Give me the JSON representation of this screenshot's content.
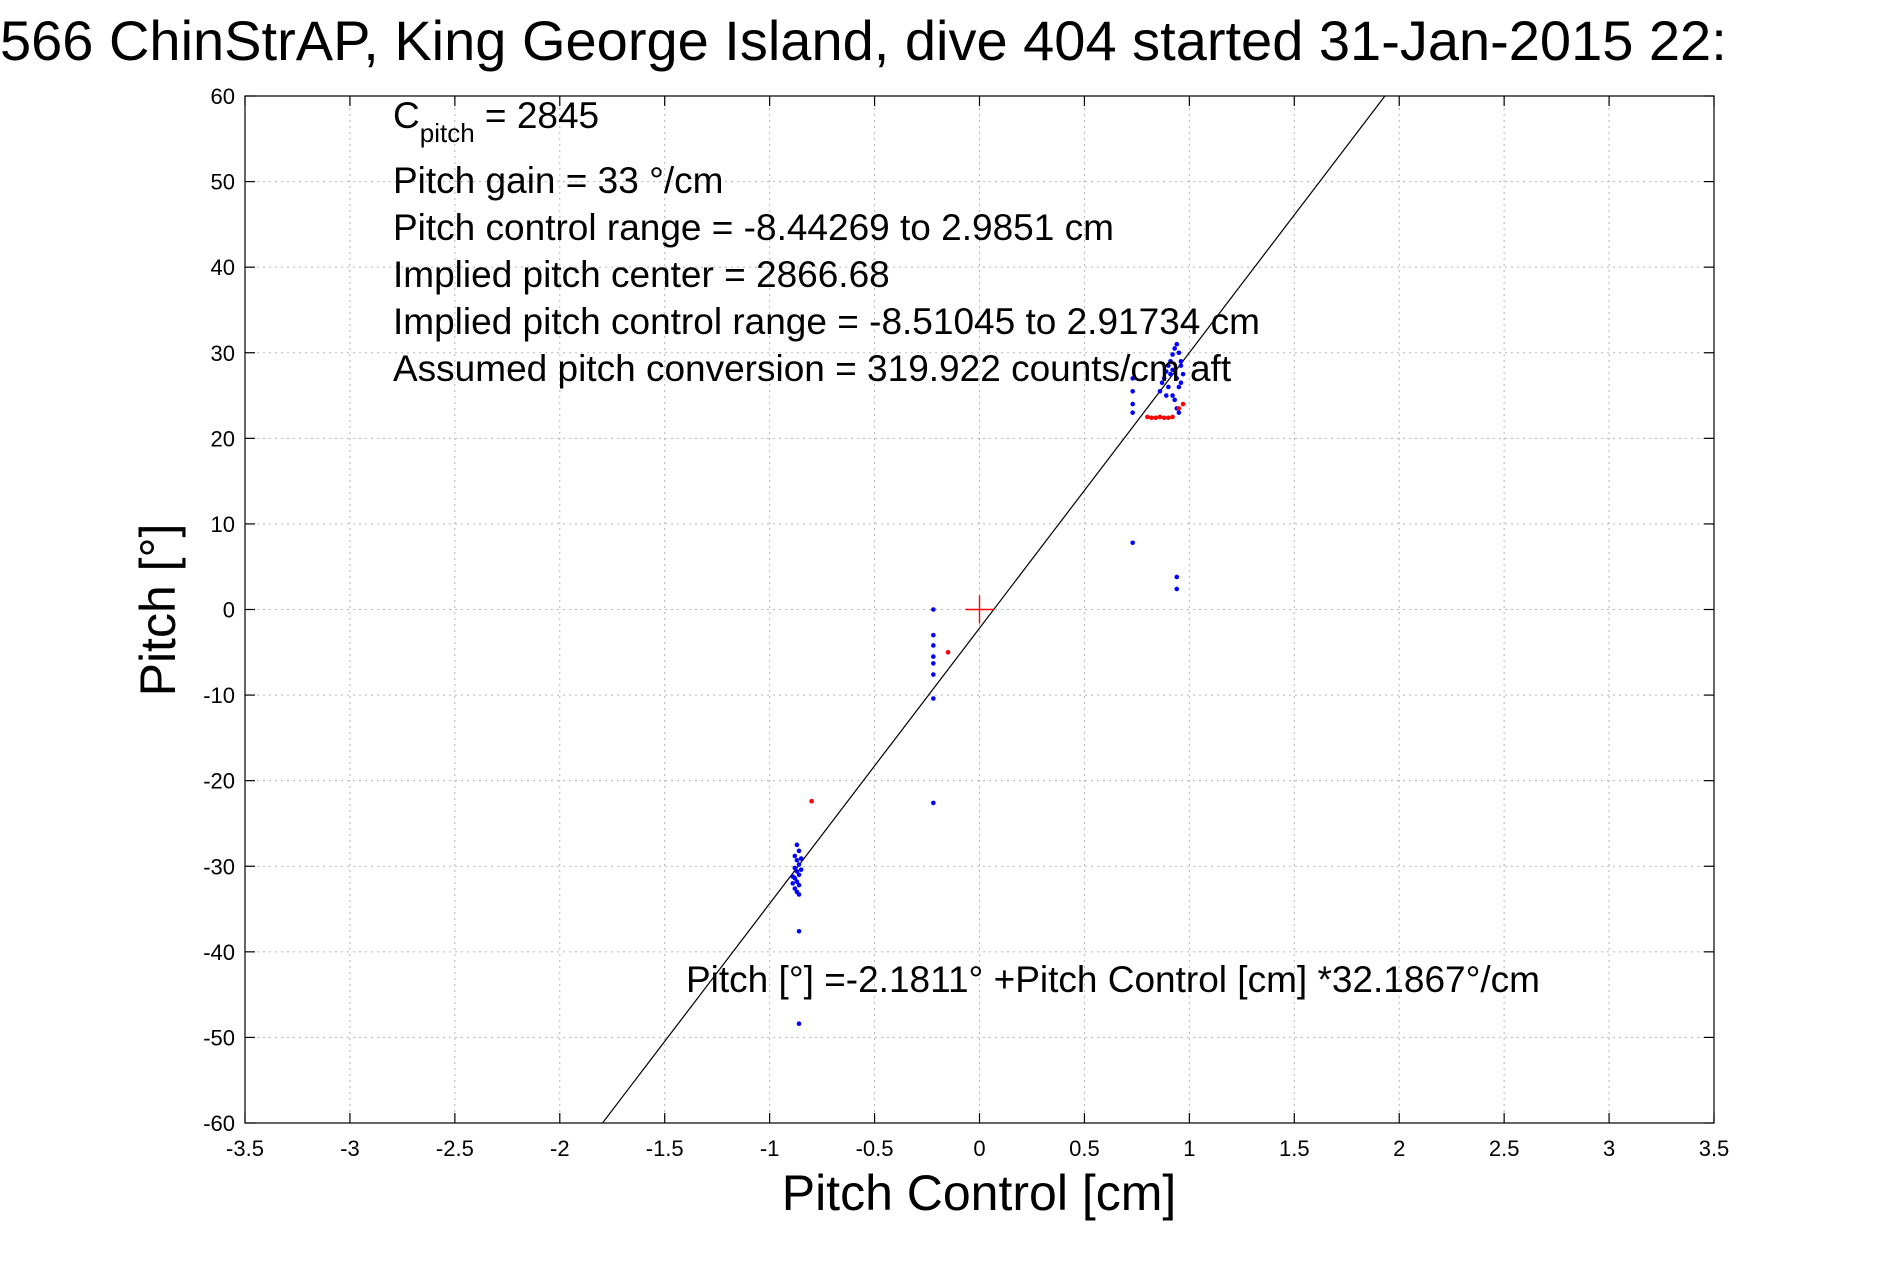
{
  "chart_data": {
    "type": "scatter",
    "title": "566 ChinStrAP, King George Island, dive 404 started 31-Jan-2015 22:",
    "xlabel": "Pitch Control [cm]",
    "ylabel": "Pitch [°]",
    "xlim": [
      -3.5,
      3.5
    ],
    "ylim": [
      -60,
      60
    ],
    "grid": true,
    "x_ticks": [
      -3.5,
      -3,
      -2.5,
      -2,
      -1.5,
      -1,
      -0.5,
      0,
      0.5,
      1,
      1.5,
      2,
      2.5,
      3,
      3.5
    ],
    "x_tick_labels": [
      "-3.5",
      "-3",
      "-2.5",
      "-2",
      "-1.5",
      "-1",
      "-0.5",
      "0",
      "0.5",
      "1",
      "1.5",
      "2",
      "2.5",
      "3",
      "3.5"
    ],
    "y_ticks": [
      60,
      50,
      40,
      30,
      20,
      10,
      0,
      -10,
      -20,
      -30,
      -40,
      -50,
      -60
    ],
    "y_tick_labels": [
      "60",
      "50",
      "40",
      "30",
      "20",
      "10",
      "0",
      "-10",
      "-20",
      "-30",
      "-40",
      "-50",
      "-60"
    ],
    "annotation": {
      "c_pitch_main": "C",
      "c_pitch_sub": "pitch",
      "c_pitch_value": " = 2845",
      "lines": [
        "Pitch gain = 33 °/cm",
        "Pitch control range = -8.44269 to 2.9851 cm",
        "Implied pitch center = 2866.68",
        "Implied pitch control range = -8.51045 to 2.91734 cm",
        "Assumed pitch conversion = 319.922 counts/cm aft"
      ]
    },
    "fit_label": "Pitch [°] =-2.1811° +Pitch Control [cm] *32.1867°/cm",
    "fit": {
      "intercept": -2.1811,
      "slope": 32.1867
    },
    "center_marker": {
      "x": 0,
      "y": 0,
      "color": "#ff0000"
    },
    "series": [
      {
        "color": "#0000ff",
        "points": [
          [
            -0.87,
            -27.5
          ],
          [
            -0.86,
            -28.2
          ],
          [
            -0.88,
            -28.8
          ],
          [
            -0.87,
            -29.3
          ],
          [
            -0.86,
            -29.8
          ],
          [
            -0.88,
            -30.2
          ],
          [
            -0.87,
            -30.6
          ],
          [
            -0.86,
            -31.0
          ],
          [
            -0.88,
            -31.4
          ],
          [
            -0.87,
            -31.8
          ],
          [
            -0.86,
            -32.2
          ],
          [
            -0.88,
            -32.6
          ],
          [
            -0.87,
            -33.0
          ],
          [
            -0.86,
            -33.3
          ],
          [
            -0.85,
            -30.4
          ],
          [
            -0.89,
            -31.2
          ],
          [
            -0.85,
            -29.1
          ],
          [
            -0.89,
            -32.0
          ],
          [
            -0.86,
            -37.6
          ],
          [
            -0.86,
            -48.4
          ],
          [
            -0.22,
            0.0
          ],
          [
            -0.22,
            -3.0
          ],
          [
            -0.22,
            -4.2
          ],
          [
            -0.22,
            -5.5
          ],
          [
            -0.22,
            -6.3
          ],
          [
            -0.22,
            -7.6
          ],
          [
            -0.22,
            -10.4
          ],
          [
            -0.22,
            -22.6
          ],
          [
            0.73,
            27.0
          ],
          [
            0.73,
            25.5
          ],
          [
            0.73,
            24.0
          ],
          [
            0.73,
            23.0
          ],
          [
            0.73,
            7.8
          ],
          [
            0.86,
            25.5
          ],
          [
            0.87,
            26.5
          ],
          [
            0.88,
            27.0
          ],
          [
            0.89,
            27.8
          ],
          [
            0.9,
            28.5
          ],
          [
            0.91,
            29.0
          ],
          [
            0.92,
            29.8
          ],
          [
            0.93,
            30.5
          ],
          [
            0.94,
            31.0
          ],
          [
            0.95,
            30.0
          ],
          [
            0.96,
            29.0
          ],
          [
            0.93,
            28.0
          ],
          [
            0.94,
            27.0
          ],
          [
            0.95,
            26.0
          ],
          [
            0.92,
            25.0
          ],
          [
            0.93,
            24.5
          ],
          [
            0.94,
            23.5
          ],
          [
            0.95,
            23.0
          ],
          [
            0.96,
            26.5
          ],
          [
            0.91,
            27.5
          ],
          [
            0.9,
            26.0
          ],
          [
            0.89,
            25.0
          ],
          [
            0.92,
            28.0
          ],
          [
            0.97,
            27.5
          ],
          [
            0.96,
            28.5
          ],
          [
            0.94,
            3.8
          ],
          [
            0.94,
            2.4
          ]
        ]
      },
      {
        "color": "#ff0000",
        "points": [
          [
            -0.8,
            -22.4
          ],
          [
            -0.15,
            -5.0
          ],
          [
            0.8,
            22.5
          ],
          [
            0.82,
            22.4
          ],
          [
            0.84,
            22.4
          ],
          [
            0.86,
            22.5
          ],
          [
            0.88,
            22.4
          ],
          [
            0.9,
            22.4
          ],
          [
            0.92,
            22.5
          ],
          [
            0.95,
            23.5
          ],
          [
            0.97,
            24.0
          ]
        ]
      }
    ]
  }
}
